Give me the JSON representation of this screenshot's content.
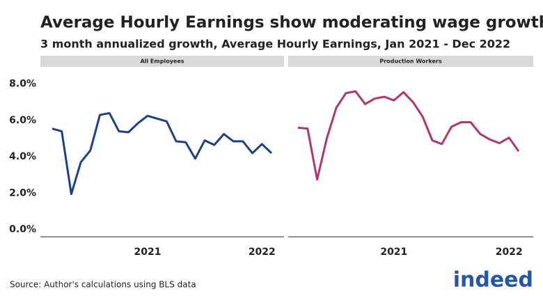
{
  "title": "Average Hourly Earnings show moderating wage growth",
  "subtitle": "3 month annualized growth, Average Hourly Earnings, Jan 2021 - Dec 2022",
  "source": "Source: Author's calculations using BLS data",
  "logo": "indeed",
  "chart_data": [
    {
      "type": "line",
      "title": "All Employees",
      "color": "#1f3f8a",
      "categories": [
        null,
        null,
        null,
        null,
        null,
        null,
        null,
        null,
        null,
        null,
        "2021",
        null,
        null,
        null,
        null,
        null,
        null,
        null,
        null,
        null,
        null,
        null,
        "2022",
        null
      ],
      "values": [
        5.55,
        5.4,
        1.95,
        3.7,
        4.35,
        6.3,
        6.4,
        5.4,
        5.35,
        5.85,
        6.25,
        6.1,
        5.95,
        4.85,
        4.8,
        3.9,
        4.9,
        4.65,
        5.25,
        4.85,
        4.85,
        4.2,
        4.7,
        4.2
      ],
      "ylim": [
        -0.4,
        8.6
      ],
      "yticks": [
        {
          "value": 0,
          "label": "0.0%"
        },
        {
          "value": 2,
          "label": "2.0%"
        },
        {
          "value": 4,
          "label": "4.0%"
        },
        {
          "value": 6,
          "label": "6.0%"
        },
        {
          "value": 8,
          "label": "8.0%"
        }
      ]
    },
    {
      "type": "line",
      "title": "Production Workers",
      "color": "#b5336e",
      "categories": [
        null,
        null,
        null,
        null,
        null,
        null,
        null,
        null,
        null,
        null,
        "2021",
        null,
        null,
        null,
        null,
        null,
        null,
        null,
        null,
        null,
        null,
        null,
        "2022",
        null
      ],
      "values": [
        5.6,
        5.55,
        2.75,
        5.0,
        6.7,
        7.5,
        7.6,
        6.9,
        7.2,
        7.3,
        7.1,
        7.55,
        7.0,
        6.2,
        4.9,
        4.7,
        5.65,
        5.9,
        5.9,
        5.25,
        4.95,
        4.75,
        5.05,
        4.3
      ],
      "ylim": [
        -0.4,
        8.6
      ]
    }
  ]
}
